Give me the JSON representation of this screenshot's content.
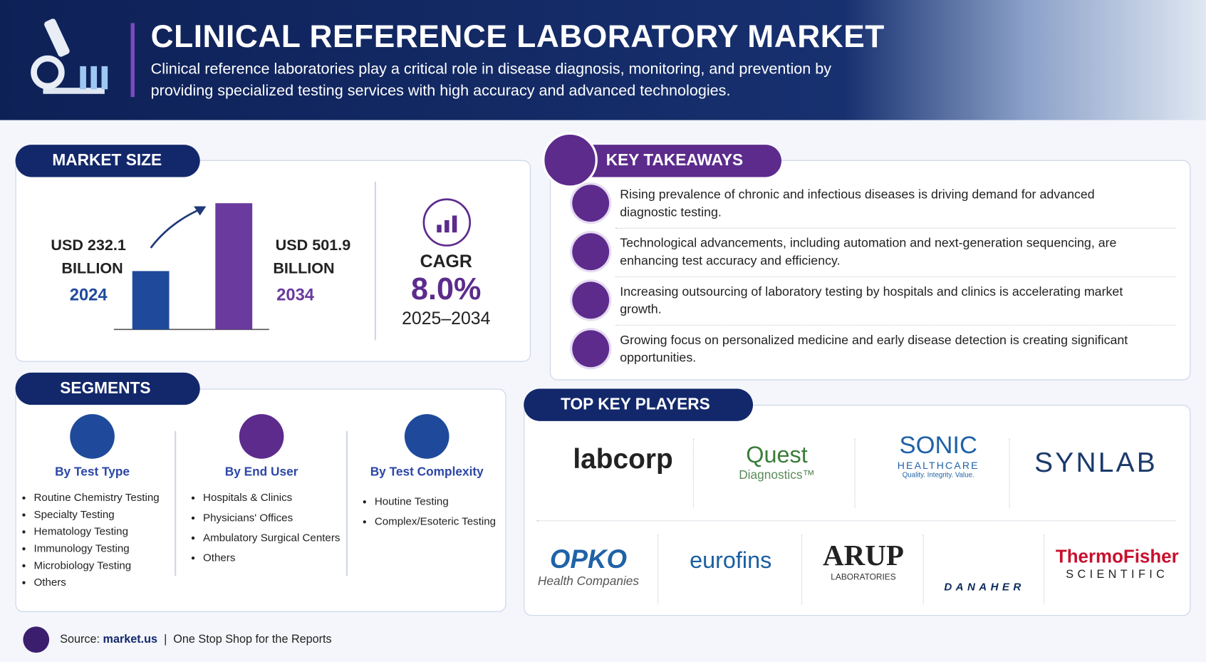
{
  "header": {
    "title": "CLINICAL REFERENCE LABORATORY MARKET",
    "subtitle": "Clinical reference laboratories play a critical role in disease diagnosis, monitoring, and prevention by providing specialized testing services with high accuracy and advanced technologies."
  },
  "market_size": {
    "title": "MARKET SIZE",
    "cagr_label": "CAGR",
    "cagr": "8.0%",
    "cagr_period": "2025–2034"
  },
  "chart_data": {
    "type": "bar",
    "categories": [
      "2024",
      "2034"
    ],
    "values": [
      232.1,
      501.9
    ],
    "value_labels": [
      "USD 232.1",
      "USD 501.9"
    ],
    "unit": "BILLION",
    "colors": [
      "#1f4a9c",
      "#6a3a9f"
    ]
  },
  "key_takeaways": {
    "title": "KEY TAKEAWAYS",
    "items": [
      "Rising prevalence of chronic and infectious diseases is driving demand for advanced diagnostic testing.",
      "Technological advancements, including automation and next-generation sequencing, are enhancing test accuracy and efficiency.",
      "Increasing outsourcing of laboratory testing by hospitals and clinics is accelerating market growth.",
      "Growing focus on personalized medicine and early disease detection is creating significant opportunities."
    ]
  },
  "segments": {
    "title": "SEGMENTS",
    "columns": [
      {
        "heading": "By Test Type",
        "items": [
          "Routine Chemistry Testing",
          "Specialty Testing",
          "Hematology Testing",
          "Immunology Testing",
          "Microbiology Testing",
          "Others"
        ]
      },
      {
        "heading": "By End User",
        "items": [
          "Hospitals & Clinics",
          "Physicians' Offices",
          "Ambulatory Surgical Centers",
          "Others"
        ]
      },
      {
        "heading": "By Test Complexity",
        "items": [
          "Houtine Testing",
          "Complex/Esoteric Testing"
        ]
      }
    ]
  },
  "top_key_players": {
    "title": "TOP KEY PLAYERS",
    "players": [
      {
        "name": "labcorp"
      },
      {
        "name": "Quest",
        "sub": "Diagnostics™"
      },
      {
        "name": "SONIC",
        "sub": "HEALTHCARE",
        "tagline": "Quality. Integrity. Value."
      },
      {
        "name": "SYNLAB"
      },
      {
        "name": "OPKO",
        "sub": "Health Companies"
      },
      {
        "name": "eurofins"
      },
      {
        "name": "ARUP",
        "sub": "LABORATORIES"
      },
      {
        "name": "DANAHER"
      },
      {
        "name": "ThermoFisher",
        "sub": "SCIENTIFIC"
      }
    ]
  },
  "footer": {
    "source_label": "Source:",
    "source": "market.us",
    "tagline": "One Stop Shop for the Reports"
  }
}
